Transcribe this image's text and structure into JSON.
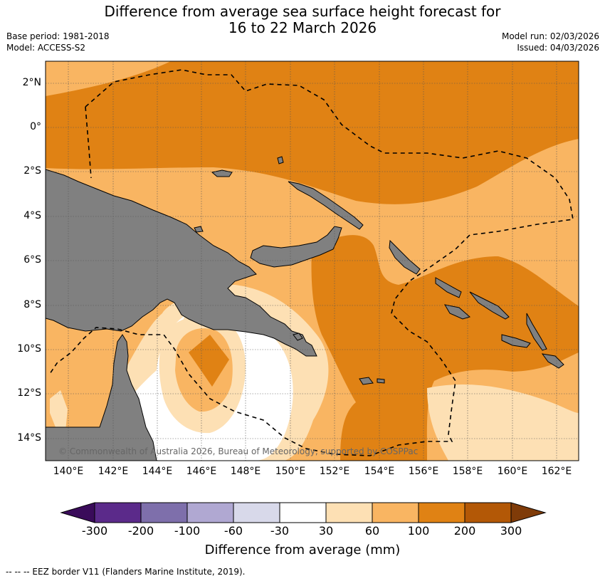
{
  "header": {
    "title_line1": "Difference from average sea surface height forecast for",
    "title_line2": "16 to 22 March 2026",
    "base_period": "Base period: 1981-2018",
    "model": "Model: ACCESS-S2",
    "model_run": "Model run: 02/03/2026",
    "issued": "Issued: 04/03/2026"
  },
  "map": {
    "lat_labels": [
      "2°N",
      "0°",
      "2°S",
      "4°S",
      "6°S",
      "8°S",
      "10°S",
      "12°S",
      "14°S"
    ],
    "lon_labels": [
      "140°E",
      "142°E",
      "144°E",
      "146°E",
      "148°E",
      "150°E",
      "152°E",
      "154°E",
      "156°E",
      "158°E",
      "160°E",
      "162°E"
    ],
    "copyright": "© Commonwealth of Australia 2026, Bureau of Meteorology, supported by COSPPac"
  },
  "colorbar": {
    "tick_labels": [
      "-300",
      "-200",
      "-100",
      "-60",
      "-30",
      "30",
      "60",
      "100",
      "200",
      "300"
    ],
    "colors": [
      "#3a0b5a",
      "#5b2a8a",
      "#7e6fab",
      "#b0a8d2",
      "#d8d9ea",
      "#ffffff",
      "#fde0b4",
      "#f9b562",
      "#e08214",
      "#b35806",
      "#7f3b08"
    ],
    "title": "Difference from average (mm)"
  },
  "legend": {
    "eez_note": "--  --  -- EEZ border V11 (Flanders Marine Institute, 2019)."
  },
  "palette": {
    "land": "#808080",
    "level_30_60": "#fde0b4",
    "level_60_100": "#f9b562",
    "level_100_200": "#e08214",
    "level_neutral": "#ffffff"
  }
}
